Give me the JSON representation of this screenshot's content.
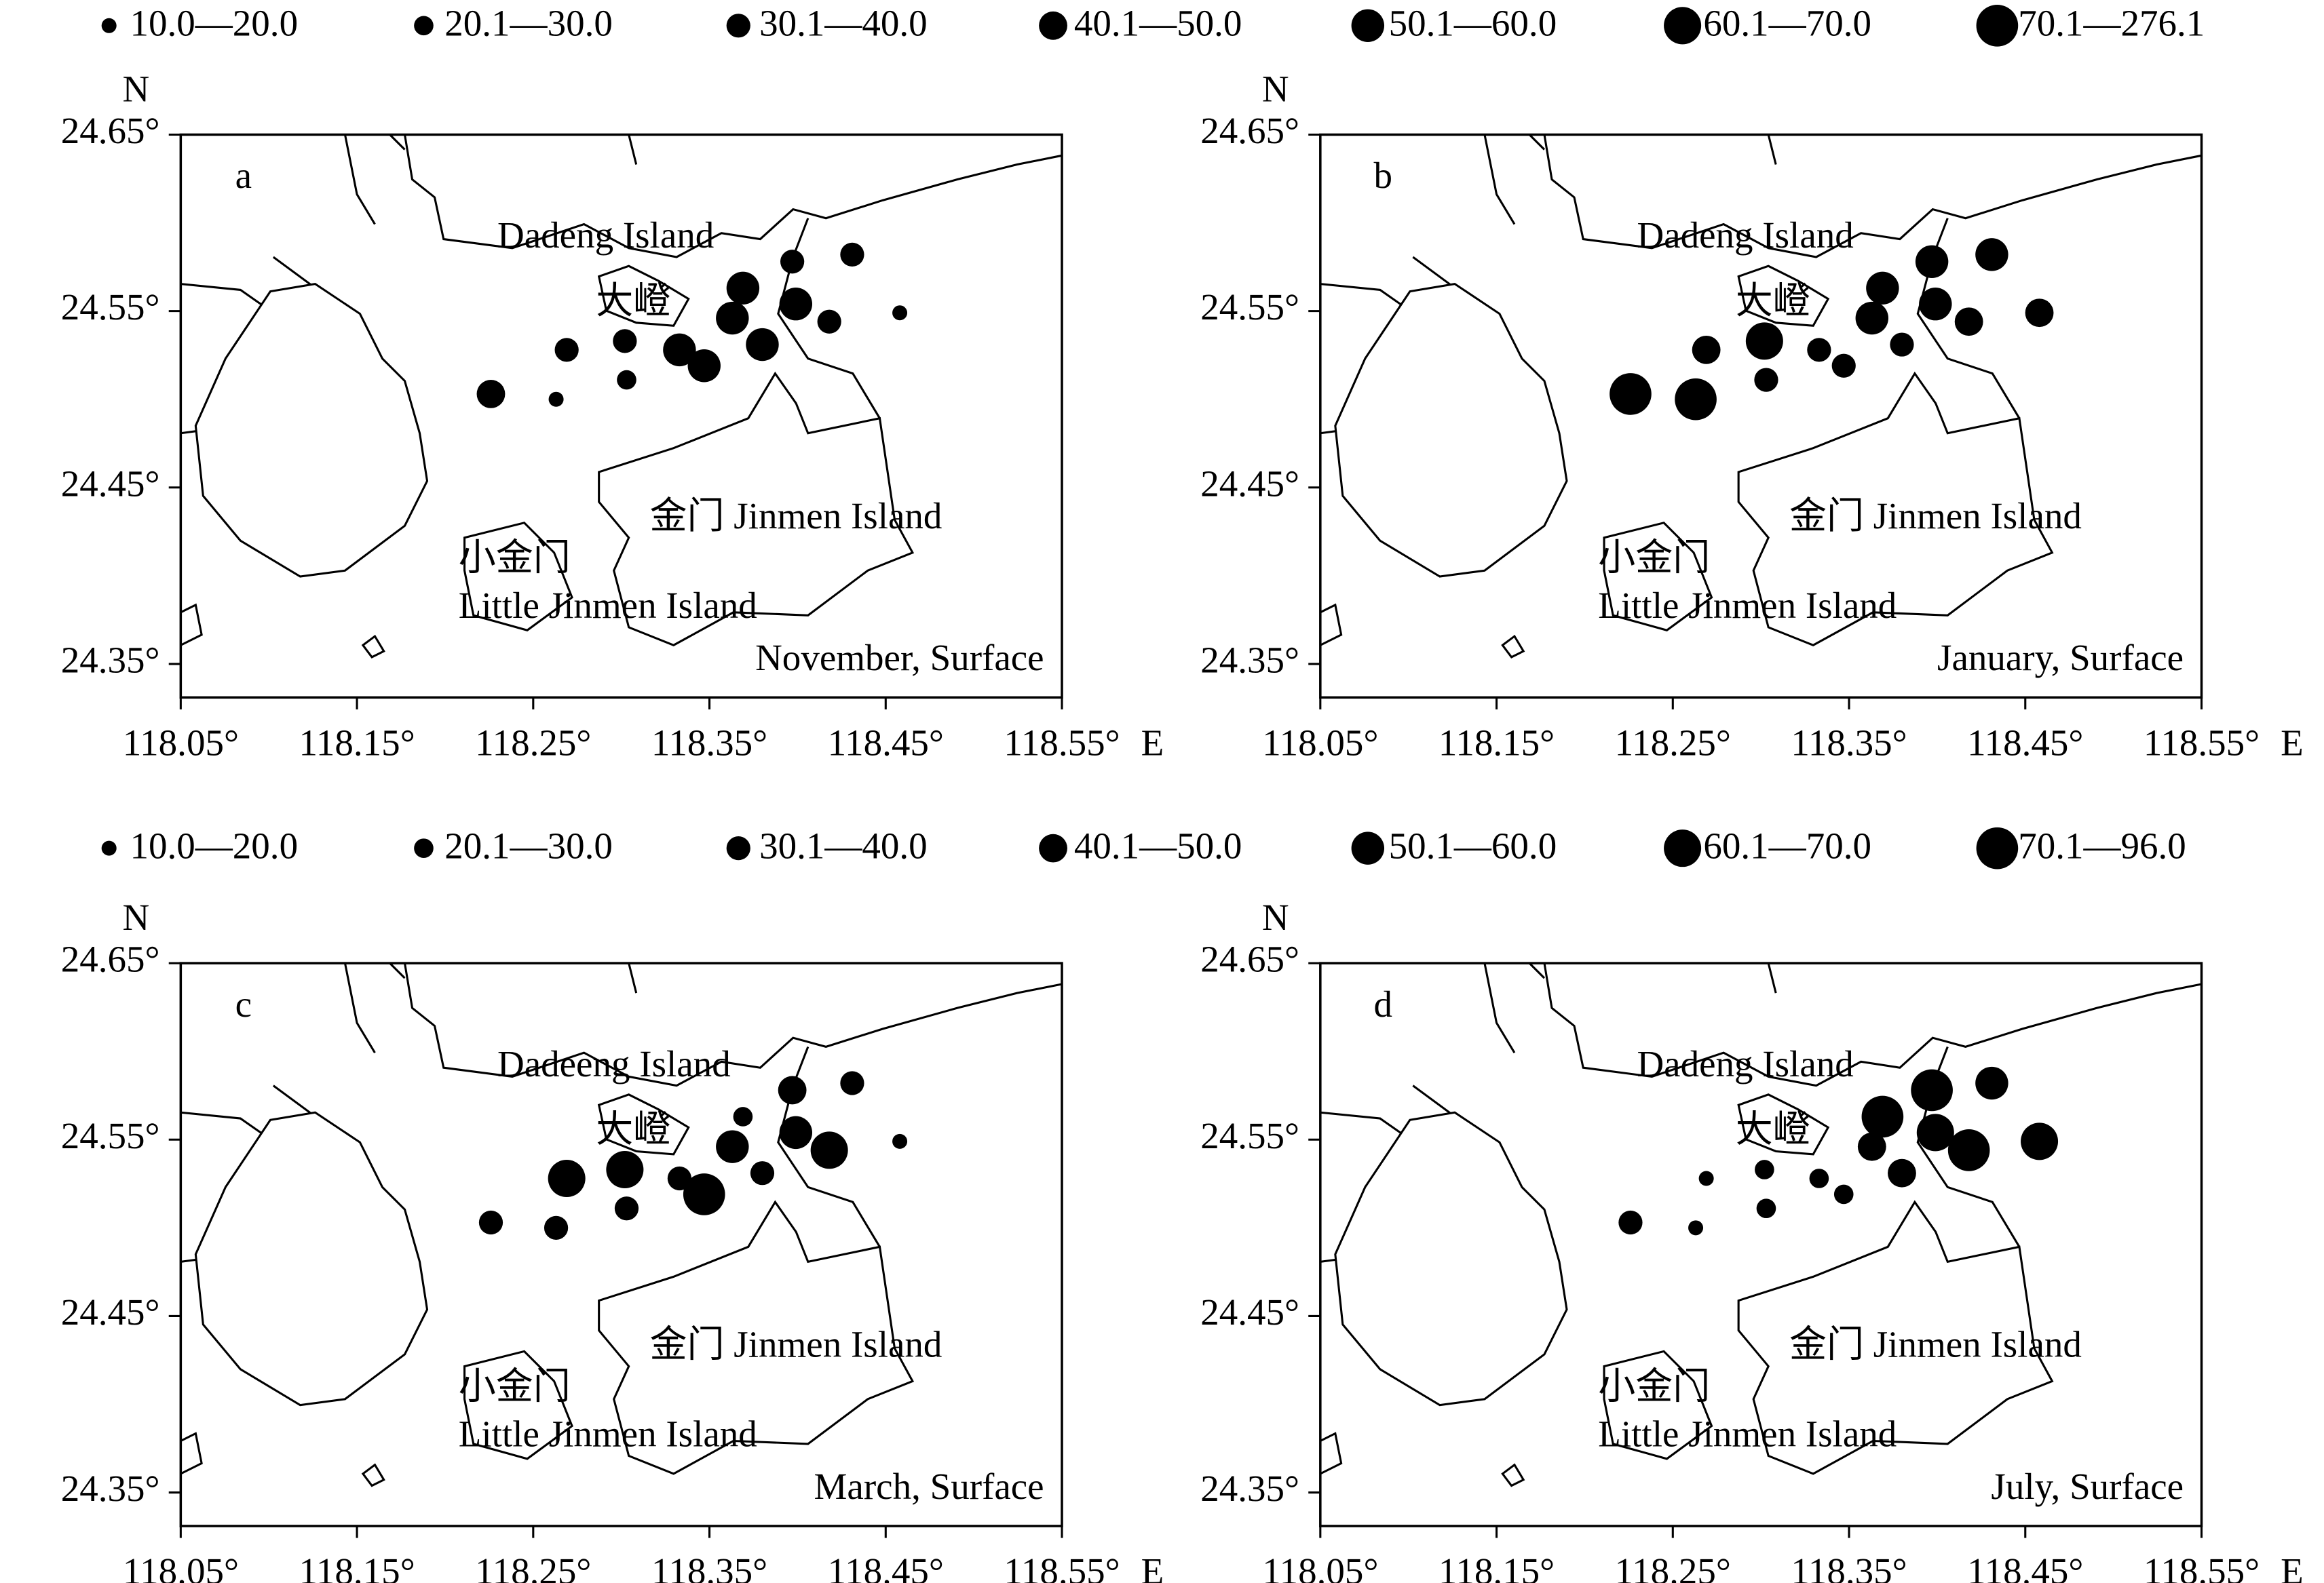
{
  "chart_data": [
    {
      "type": "scatter",
      "panel": "a",
      "caption": "November, Surface",
      "labels": [
        "Dadeng Island",
        "大嶝",
        "金门 Jinmen Island",
        "小金门",
        "Little Jinmen Island"
      ],
      "x_label": "E",
      "y_label": "N",
      "size_legend": [
        "10.0—20.0",
        "20.1—30.0",
        "30.1—40.0",
        "40.1—50.0",
        "50.1—60.0",
        "60.1—70.0",
        "70.1—276.1"
      ],
      "xlim": [
        118.05,
        118.55
      ],
      "ylim": [
        24.331,
        24.65
      ],
      "xticks": [
        {
          "value": 118.05,
          "label": "118.05°"
        },
        {
          "value": 118.15,
          "label": "118.15°"
        },
        {
          "value": 118.25,
          "label": "118.25°"
        },
        {
          "value": 118.35,
          "label": "118.35°"
        },
        {
          "value": 118.45,
          "label": "118.45°"
        },
        {
          "value": 118.55,
          "label": "118.55°"
        }
      ],
      "yticks": [
        {
          "value": 24.35,
          "label": "24.35°"
        },
        {
          "value": 24.45,
          "label": "24.45°"
        },
        {
          "value": 24.55,
          "label": "24.55°"
        },
        {
          "value": 24.65,
          "label": "24.65°"
        }
      ],
      "x": [
        118.226,
        118.263,
        118.269,
        118.302,
        118.303,
        118.333,
        118.347,
        118.369,
        118.363,
        118.38,
        118.397,
        118.399,
        118.418,
        118.431,
        118.458
      ],
      "y": [
        24.503,
        24.5,
        24.528,
        24.533,
        24.511,
        24.528,
        24.519,
        24.563,
        24.546,
        24.531,
        24.578,
        24.554,
        24.544,
        24.582,
        24.549
      ],
      "classes": [
        3,
        0,
        2,
        2,
        1,
        4,
        4,
        4,
        4,
        4,
        2,
        4,
        2,
        2,
        0
      ]
    },
    {
      "type": "scatter",
      "panel": "b",
      "caption": "January, Surface",
      "labels": [
        "Dadeng Island",
        "大嶝",
        "金门 Jinmen Island",
        "小金门",
        "Little Jinmen Island"
      ],
      "x_label": "E",
      "y_label": "N",
      "xlim": [
        118.05,
        118.55
      ],
      "ylim": [
        24.331,
        24.65
      ],
      "xticks": [
        {
          "value": 118.05,
          "label": "118.05°"
        },
        {
          "value": 118.15,
          "label": "118.15°"
        },
        {
          "value": 118.25,
          "label": "118.25°"
        },
        {
          "value": 118.35,
          "label": "118.35°"
        },
        {
          "value": 118.45,
          "label": "118.45°"
        },
        {
          "value": 118.55,
          "label": "118.55°"
        }
      ],
      "yticks": [
        {
          "value": 24.35,
          "label": "24.35°"
        },
        {
          "value": 24.45,
          "label": "24.45°"
        },
        {
          "value": 24.55,
          "label": "24.55°"
        },
        {
          "value": 24.65,
          "label": "24.65°"
        }
      ],
      "x": [
        118.226,
        118.263,
        118.269,
        118.302,
        118.303,
        118.333,
        118.347,
        118.369,
        118.363,
        118.38,
        118.397,
        118.399,
        118.418,
        118.431,
        118.458
      ],
      "y": [
        24.503,
        24.5,
        24.528,
        24.533,
        24.511,
        24.528,
        24.519,
        24.563,
        24.546,
        24.531,
        24.578,
        24.554,
        24.544,
        24.582,
        24.549
      ],
      "classes": [
        6,
        6,
        3,
        5,
        2,
        2,
        2,
        4,
        4,
        2,
        4,
        4,
        3,
        4,
        3
      ]
    },
    {
      "type": "scatter",
      "panel": "c",
      "caption": "March, Surface",
      "labels": [
        "Dadeeng Island",
        "大嶝",
        "金门 Jinmen Island",
        "小金门",
        "Little Jinmen Island"
      ],
      "x_label": "E",
      "y_label": "N",
      "size_legend": [
        "10.0—20.0",
        "20.1—30.0",
        "30.1—40.0",
        "40.1—50.0",
        "50.1—60.0",
        "60.1—70.0",
        "70.1—96.0"
      ],
      "xlim": [
        118.05,
        118.55
      ],
      "ylim": [
        24.331,
        24.65
      ],
      "xticks": [
        {
          "value": 118.05,
          "label": "118.05°"
        },
        {
          "value": 118.15,
          "label": "118.15°"
        },
        {
          "value": 118.25,
          "label": "118.25°"
        },
        {
          "value": 118.35,
          "label": "118.35°"
        },
        {
          "value": 118.45,
          "label": "118.45°"
        },
        {
          "value": 118.55,
          "label": "118.55°"
        }
      ],
      "yticks": [
        {
          "value": 24.35,
          "label": "24.35°"
        },
        {
          "value": 24.45,
          "label": "24.45°"
        },
        {
          "value": 24.55,
          "label": "24.55°"
        },
        {
          "value": 24.65,
          "label": "24.65°"
        }
      ],
      "x": [
        118.226,
        118.263,
        118.269,
        118.302,
        118.303,
        118.333,
        118.347,
        118.369,
        118.363,
        118.38,
        118.397,
        118.399,
        118.418,
        118.431,
        118.458
      ],
      "y": [
        24.503,
        24.5,
        24.528,
        24.533,
        24.511,
        24.528,
        24.519,
        24.563,
        24.546,
        24.531,
        24.578,
        24.554,
        24.544,
        24.582,
        24.549
      ],
      "classes": [
        2,
        2,
        5,
        5,
        2,
        2,
        6,
        1,
        4,
        2,
        3,
        4,
        5,
        2,
        0
      ]
    },
    {
      "type": "scatter",
      "panel": "d",
      "caption": "July, Surface",
      "labels": [
        "Dadeng Island",
        "大嶝",
        "金门 Jinmen Island",
        "小金门",
        "Little Jinmen Island"
      ],
      "x_label": "E",
      "y_label": "N",
      "xlim": [
        118.05,
        118.55
      ],
      "ylim": [
        24.331,
        24.65
      ],
      "xticks": [
        {
          "value": 118.05,
          "label": "118.05°"
        },
        {
          "value": 118.15,
          "label": "118.15°"
        },
        {
          "value": 118.25,
          "label": "118.25°"
        },
        {
          "value": 118.35,
          "label": "118.35°"
        },
        {
          "value": 118.45,
          "label": "118.45°"
        },
        {
          "value": 118.55,
          "label": "118.55°"
        }
      ],
      "yticks": [
        {
          "value": 24.35,
          "label": "24.35°"
        },
        {
          "value": 24.45,
          "label": "24.45°"
        },
        {
          "value": 24.55,
          "label": "24.55°"
        },
        {
          "value": 24.65,
          "label": "24.65°"
        }
      ],
      "x": [
        118.226,
        118.263,
        118.269,
        118.302,
        118.303,
        118.333,
        118.347,
        118.369,
        118.363,
        118.38,
        118.397,
        118.399,
        118.418,
        118.431,
        118.458
      ],
      "y": [
        24.503,
        24.5,
        24.528,
        24.533,
        24.511,
        24.528,
        24.519,
        24.563,
        24.546,
        24.531,
        24.578,
        24.554,
        24.544,
        24.582,
        24.549
      ],
      "classes": [
        2,
        0,
        0,
        1,
        1,
        1,
        1,
        6,
        3,
        3,
        6,
        5,
        6,
        4,
        5
      ]
    }
  ]
}
